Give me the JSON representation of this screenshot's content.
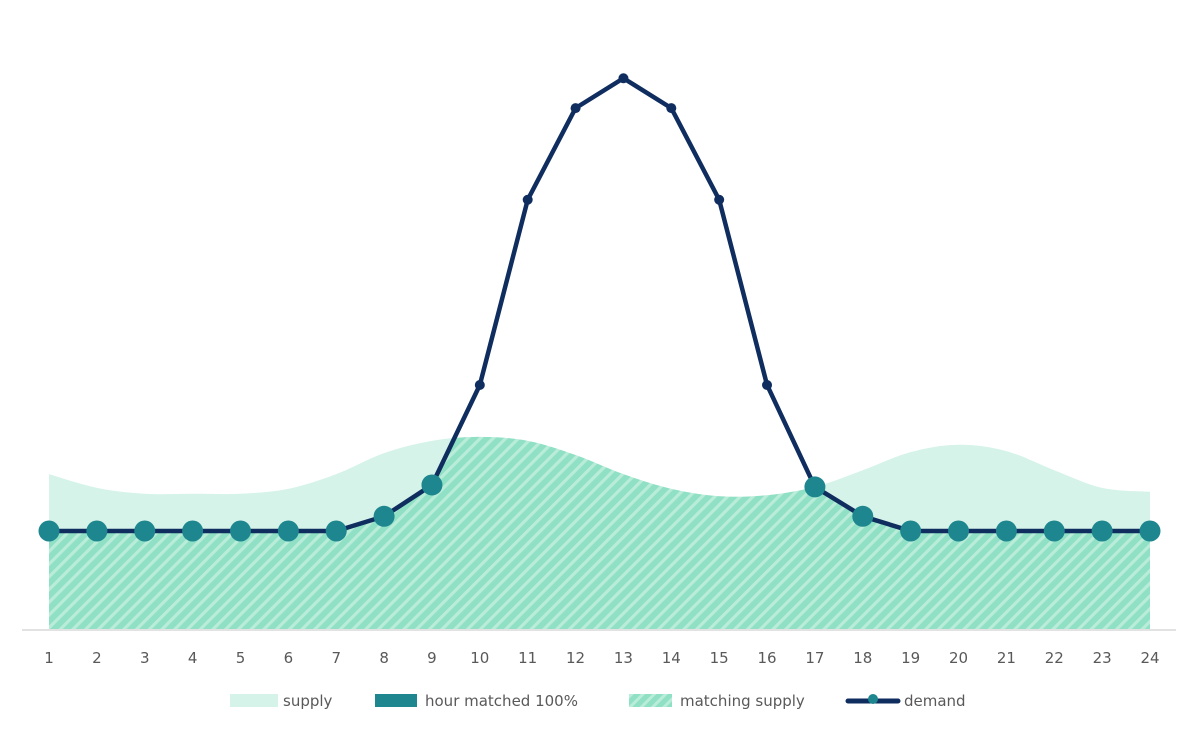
{
  "chart_data": {
    "type": "line",
    "title": "",
    "xlabel": "",
    "ylabel": "",
    "categories": [
      "1",
      "2",
      "3",
      "4",
      "5",
      "6",
      "7",
      "8",
      "9",
      "10",
      "11",
      "12",
      "13",
      "14",
      "15",
      "16",
      "17",
      "18",
      "19",
      "20",
      "21",
      "22",
      "23",
      "24"
    ],
    "series": [
      {
        "name": "supply",
        "kind": "area",
        "color": "#d5f3e8",
        "values": [
          31.6,
          28.8,
          27.6,
          27.6,
          27.6,
          28.6,
          31.6,
          35.9,
          38.4,
          39.2,
          38.4,
          35.5,
          31.6,
          28.6,
          27.1,
          27.3,
          29.0,
          32.4,
          36.1,
          37.6,
          36.3,
          32.4,
          28.8,
          28.0
        ]
      },
      {
        "name": "matching supply",
        "kind": "hatched-area",
        "color": "#8fe0c4",
        "hatch_color": "#b9ecd9",
        "definition": "min(supply, demand)"
      },
      {
        "name": "demand",
        "kind": "line-with-markers",
        "color": "#0f2d5e",
        "values": [
          20,
          20,
          20,
          20,
          20,
          20,
          20,
          23,
          29.4,
          49.8,
          87.6,
          106.3,
          112.4,
          106.3,
          87.6,
          49.8,
          29,
          23,
          20,
          20,
          20,
          20,
          20,
          20
        ]
      },
      {
        "name": "hour matched 100%",
        "kind": "marker",
        "color": "#1e868f",
        "definition": "large teal marker on demand where supply >= demand",
        "hours": [
          1,
          2,
          3,
          4,
          5,
          6,
          7,
          8,
          9,
          17,
          18,
          19,
          20,
          21,
          22,
          23,
          24
        ]
      }
    ],
    "ylim": [
      0,
      115
    ],
    "grid": false,
    "y_axis_visible": false,
    "legend_position": "bottom"
  },
  "legend": {
    "items": [
      {
        "label": "supply",
        "swatch": "solid",
        "color": "#d5f3e8"
      },
      {
        "label": "hour matched 100%",
        "swatch": "solid",
        "color": "#1e868f"
      },
      {
        "label": "matching supply",
        "swatch": "hatched",
        "color": "#8fe0c4"
      },
      {
        "label": "demand",
        "swatch": "line-marker",
        "color": "#0f2d5e"
      }
    ]
  },
  "colors": {
    "axis": "#d9d9d9",
    "tick_text": "#595959",
    "demand_line": "#0f2d5e",
    "matched_marker": "#1e868f",
    "supply_fill": "#d5f3e8",
    "matching_fill": "#8fe0c4",
    "matching_hatch": "#b9ecd9"
  }
}
